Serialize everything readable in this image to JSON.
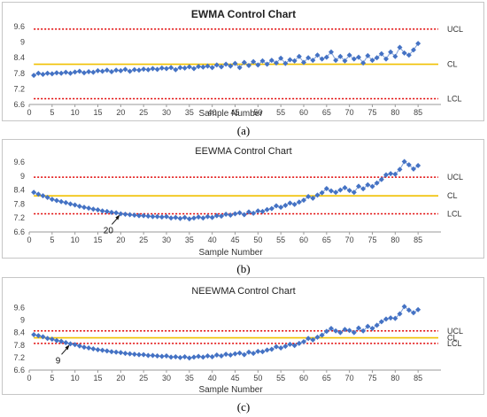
{
  "chart_data": [
    {
      "type": "scatter",
      "title": "EWMA Control Chart",
      "xlabel": "Sample Number",
      "ylabel": "",
      "xlim": [
        0,
        90
      ],
      "ylim": [
        6.6,
        9.6
      ],
      "xticks": [
        0,
        5,
        10,
        15,
        20,
        25,
        30,
        35,
        40,
        45,
        50,
        55,
        60,
        65,
        70,
        75,
        80,
        85
      ],
      "yticks": [
        6.6,
        7.2,
        7.8,
        8.4,
        9,
        9.6
      ],
      "yticklabels": [
        "6.6",
        "7.2",
        "7.8",
        "8.4",
        "9",
        "9.6"
      ],
      "control_lines": [
        {
          "label": "UCL",
          "value": 9.5,
          "color": "#e00000",
          "style": "dotted"
        },
        {
          "label": "CL",
          "value": 8.15,
          "color": "#f0c000",
          "style": "solid"
        },
        {
          "label": "LCL",
          "value": 6.82,
          "color": "#e00000",
          "style": "dotted"
        }
      ],
      "series": [
        {
          "color": "#4472c4",
          "x": [
            1,
            2,
            3,
            4,
            5,
            6,
            7,
            8,
            9,
            10,
            11,
            12,
            13,
            14,
            15,
            16,
            17,
            18,
            19,
            20,
            21,
            22,
            23,
            24,
            25,
            26,
            27,
            28,
            29,
            30,
            31,
            32,
            33,
            34,
            35,
            36,
            37,
            38,
            39,
            40,
            41,
            42,
            43,
            44,
            45,
            46,
            47,
            48,
            49,
            50,
            51,
            52,
            53,
            54,
            55,
            56,
            57,
            58,
            59,
            60,
            61,
            62,
            63,
            64,
            65,
            66,
            67,
            68,
            69,
            70,
            71,
            72,
            73,
            74,
            75,
            76,
            77,
            78,
            79,
            80,
            81,
            82,
            83,
            84,
            85
          ],
          "y": [
            7.72,
            7.8,
            7.76,
            7.8,
            7.78,
            7.82,
            7.8,
            7.84,
            7.8,
            7.85,
            7.88,
            7.82,
            7.86,
            7.84,
            7.9,
            7.88,
            7.92,
            7.86,
            7.92,
            7.9,
            7.95,
            7.88,
            7.94,
            7.92,
            7.96,
            7.94,
            7.98,
            7.95,
            8.0,
            7.98,
            8.02,
            7.94,
            8.02,
            8.0,
            8.05,
            7.98,
            8.06,
            8.04,
            8.08,
            8.02,
            8.12,
            8.05,
            8.15,
            8.08,
            8.18,
            8.02,
            8.22,
            8.1,
            8.25,
            8.12,
            8.28,
            8.15,
            8.3,
            8.2,
            8.38,
            8.18,
            8.32,
            8.28,
            8.45,
            8.22,
            8.4,
            8.3,
            8.5,
            8.35,
            8.42,
            8.62,
            8.3,
            8.45,
            8.28,
            8.5,
            8.35,
            8.42,
            8.2,
            8.48,
            8.3,
            8.4,
            8.55,
            8.35,
            8.62,
            8.45,
            8.8,
            8.58,
            8.5,
            8.7,
            8.95
          ]
        }
      ],
      "caption": "(a)"
    },
    {
      "type": "scatter",
      "title": "EEWMA Control Chart",
      "xlabel": "Sample Number",
      "ylabel": "",
      "xlim": [
        0,
        90
      ],
      "ylim": [
        6.6,
        9.6
      ],
      "xticks": [
        0,
        5,
        10,
        15,
        20,
        25,
        30,
        35,
        40,
        45,
        50,
        55,
        60,
        65,
        70,
        75,
        80,
        85
      ],
      "yticks": [
        6.6,
        7.2,
        7.8,
        8.4,
        9,
        9.6
      ],
      "yticklabels": [
        "6.6",
        "7.2",
        "7.8",
        "8.4",
        "9",
        "9.6"
      ],
      "control_lines": [
        {
          "label": "UCL",
          "value": 8.95,
          "color": "#e00000",
          "style": "dotted"
        },
        {
          "label": "CL",
          "value": 8.15,
          "color": "#f0c000",
          "style": "solid"
        },
        {
          "label": "LCL",
          "value": 7.38,
          "color": "#e00000",
          "style": "dotted"
        }
      ],
      "annotations": [
        {
          "text": "20",
          "x": 20,
          "y": 7.38
        }
      ],
      "series": [
        {
          "color": "#4472c4",
          "x": [
            1,
            2,
            3,
            4,
            5,
            6,
            7,
            8,
            9,
            10,
            11,
            12,
            13,
            14,
            15,
            16,
            17,
            18,
            19,
            20,
            21,
            22,
            23,
            24,
            25,
            26,
            27,
            28,
            29,
            30,
            31,
            32,
            33,
            34,
            35,
            36,
            37,
            38,
            39,
            40,
            41,
            42,
            43,
            44,
            45,
            46,
            47,
            48,
            49,
            50,
            51,
            52,
            53,
            54,
            55,
            56,
            57,
            58,
            59,
            60,
            61,
            62,
            63,
            64,
            65,
            66,
            67,
            68,
            69,
            70,
            71,
            72,
            73,
            74,
            75,
            76,
            77,
            78,
            79,
            80,
            81,
            82,
            83,
            84,
            85
          ],
          "y": [
            8.3,
            8.22,
            8.15,
            8.08,
            8.0,
            7.95,
            7.9,
            7.86,
            7.8,
            7.76,
            7.7,
            7.66,
            7.62,
            7.58,
            7.55,
            7.5,
            7.48,
            7.44,
            7.42,
            7.38,
            7.36,
            7.34,
            7.32,
            7.3,
            7.3,
            7.28,
            7.26,
            7.26,
            7.24,
            7.26,
            7.2,
            7.22,
            7.18,
            7.22,
            7.16,
            7.2,
            7.24,
            7.2,
            7.26,
            7.22,
            7.3,
            7.28,
            7.36,
            7.32,
            7.38,
            7.42,
            7.34,
            7.46,
            7.4,
            7.5,
            7.48,
            7.56,
            7.6,
            7.72,
            7.66,
            7.74,
            7.84,
            7.78,
            7.88,
            7.96,
            8.12,
            8.05,
            8.18,
            8.28,
            8.46,
            8.36,
            8.3,
            8.4,
            8.5,
            8.38,
            8.3,
            8.56,
            8.45,
            8.62,
            8.55,
            8.7,
            8.85,
            9.05,
            9.1,
            9.08,
            9.28,
            9.62,
            9.48,
            9.3,
            9.45
          ]
        }
      ],
      "caption": "(b)"
    },
    {
      "type": "scatter",
      "title": "NEEWMA Control Chart",
      "xlabel": "Sample Number",
      "ylabel": "",
      "xlim": [
        0,
        90
      ],
      "ylim": [
        6.6,
        10.0
      ],
      "xticks": [
        0,
        5,
        10,
        15,
        20,
        25,
        30,
        35,
        40,
        45,
        50,
        55,
        60,
        65,
        70,
        75,
        80,
        85
      ],
      "yticks": [
        6.6,
        7.2,
        7.8,
        8.4,
        9,
        9.6
      ],
      "yticklabels": [
        "6.6",
        "7.2",
        "7.8",
        "8.4",
        "9",
        "9.6"
      ],
      "control_lines": [
        {
          "label": "UCL",
          "value": 8.48,
          "color": "#e00000",
          "style": "dotted"
        },
        {
          "label": "CL",
          "value": 8.15,
          "color": "#f0c000",
          "style": "solid"
        },
        {
          "label": "LCL",
          "value": 7.88,
          "color": "#e00000",
          "style": "dotted"
        }
      ],
      "annotations": [
        {
          "text": "9",
          "x": 9,
          "y": 7.86
        }
      ],
      "series": [
        {
          "color": "#4472c4",
          "x": [
            1,
            2,
            3,
            4,
            5,
            6,
            7,
            8,
            9,
            10,
            11,
            12,
            13,
            14,
            15,
            16,
            17,
            18,
            19,
            20,
            21,
            22,
            23,
            24,
            25,
            26,
            27,
            28,
            29,
            30,
            31,
            32,
            33,
            34,
            35,
            36,
            37,
            38,
            39,
            40,
            41,
            42,
            43,
            44,
            45,
            46,
            47,
            48,
            49,
            50,
            51,
            52,
            53,
            54,
            55,
            56,
            57,
            58,
            59,
            60,
            61,
            62,
            63,
            64,
            65,
            66,
            67,
            68,
            69,
            70,
            71,
            72,
            73,
            74,
            75,
            76,
            77,
            78,
            79,
            80,
            81,
            82,
            83,
            84,
            85
          ],
          "y": [
            8.3,
            8.25,
            8.2,
            8.12,
            8.08,
            8.02,
            7.98,
            7.92,
            7.86,
            7.82,
            7.76,
            7.7,
            7.66,
            7.62,
            7.58,
            7.55,
            7.52,
            7.48,
            7.46,
            7.44,
            7.4,
            7.38,
            7.36,
            7.34,
            7.34,
            7.3,
            7.3,
            7.28,
            7.26,
            7.28,
            7.22,
            7.24,
            7.2,
            7.24,
            7.18,
            7.22,
            7.26,
            7.22,
            7.28,
            7.24,
            7.32,
            7.28,
            7.36,
            7.32,
            7.38,
            7.42,
            7.34,
            7.46,
            7.4,
            7.5,
            7.48,
            7.56,
            7.6,
            7.72,
            7.66,
            7.74,
            7.84,
            7.78,
            7.88,
            7.96,
            8.12,
            8.05,
            8.18,
            8.28,
            8.46,
            8.6,
            8.48,
            8.4,
            8.55,
            8.5,
            8.4,
            8.62,
            8.48,
            8.7,
            8.6,
            8.75,
            8.92,
            9.05,
            9.1,
            9.08,
            9.3,
            9.65,
            9.48,
            9.35,
            9.5
          ]
        }
      ],
      "caption": "(c)"
    }
  ]
}
